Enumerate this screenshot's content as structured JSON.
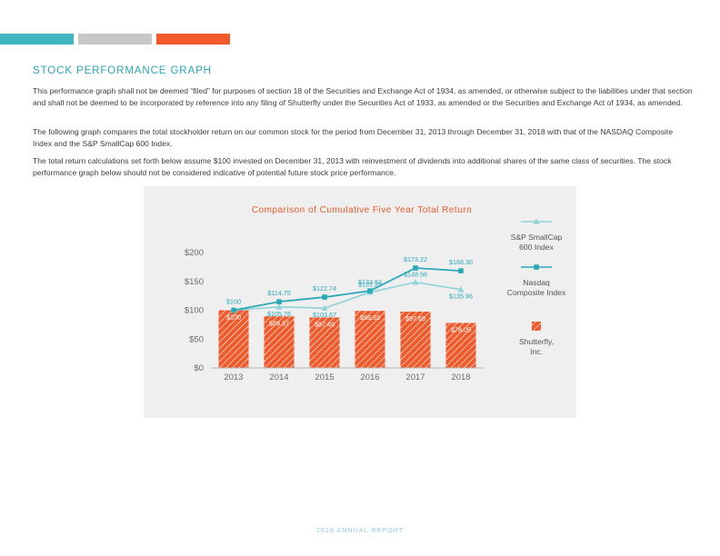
{
  "header": {
    "accent_bars": [
      "#41b4c2",
      "#c7c7c7",
      "#f25a2b"
    ]
  },
  "section_title": "STOCK PERFORMANCE GRAPH",
  "paragraphs": [
    "This performance graph shall not be deemed “filed” for purposes of section 18 of the Securities and Exchange Act of 1934, as amended, or otherwise subject to the liabilities under that section and shall not be deemed to be incorporated by reference into any filing of Shutterfly under the Securities Act of 1933, as amended or the Securities and Exchange Act of 1934, as amended.",
    "The following graph compares the total stockholder return on our common stock for the period from December 31, 2013 through December 31, 2018 with that of the NASDAQ Composite Index and the S&P SmallCap 600 Index.",
    "The total return calculations set forth below assume $100 invested on December 31, 2013 with reinvestment of dividends into additional shares of the same class of securities. The stock performance graph below should not be considered indicative of potential future stock price performance."
  ],
  "chart_data": {
    "type": "bar",
    "title": "Comparison of Cumulative Five Year Total Return",
    "categories": [
      "2013",
      "2014",
      "2015",
      "2016",
      "2017",
      "2018"
    ],
    "ylim": [
      0,
      200
    ],
    "yticks": [
      "$0",
      "$50",
      "$100",
      "$150",
      "$200"
    ],
    "grid": false,
    "legend_position": "right",
    "series": [
      {
        "name": "S&P SmallCap 600 Index",
        "kind": "line",
        "marker": "triangle",
        "color": "#8fd3da",
        "values": [
          100,
          105.76,
          103.67,
          131.2,
          148.56,
          135.96
        ],
        "labels": [
          "",
          "$105.76",
          "$103.67",
          "$131.20",
          "$148.56",
          "$135.96"
        ]
      },
      {
        "name": "Nasdaq Composite Index",
        "kind": "line",
        "marker": "square",
        "color": "#2aa8b8",
        "values": [
          100,
          114.75,
          122.74,
          133.62,
          173.22,
          168.3
        ],
        "labels": [
          "$100",
          "$114.75",
          "$122.74",
          "$133.62",
          "$173.22",
          "$168.30"
        ]
      },
      {
        "name": "Shutterfly, Inc.",
        "kind": "bar",
        "color": "#f05a2b",
        "values": [
          100,
          89.37,
          87.49,
          98.93,
          97.68,
          78.05
        ],
        "labels": [
          "$100",
          "$89.37",
          "$87.49",
          "$98.93",
          "$97.68",
          "$78.05"
        ]
      }
    ],
    "legend": [
      {
        "line1": "S&P SmallCap",
        "line2": "600 Index"
      },
      {
        "line1": "Nasdaq",
        "line2": "Composite Index"
      },
      {
        "line1": "Shutterfly,",
        "line2": "Inc."
      }
    ]
  },
  "footer": "2018 ANNUAL REPORT"
}
